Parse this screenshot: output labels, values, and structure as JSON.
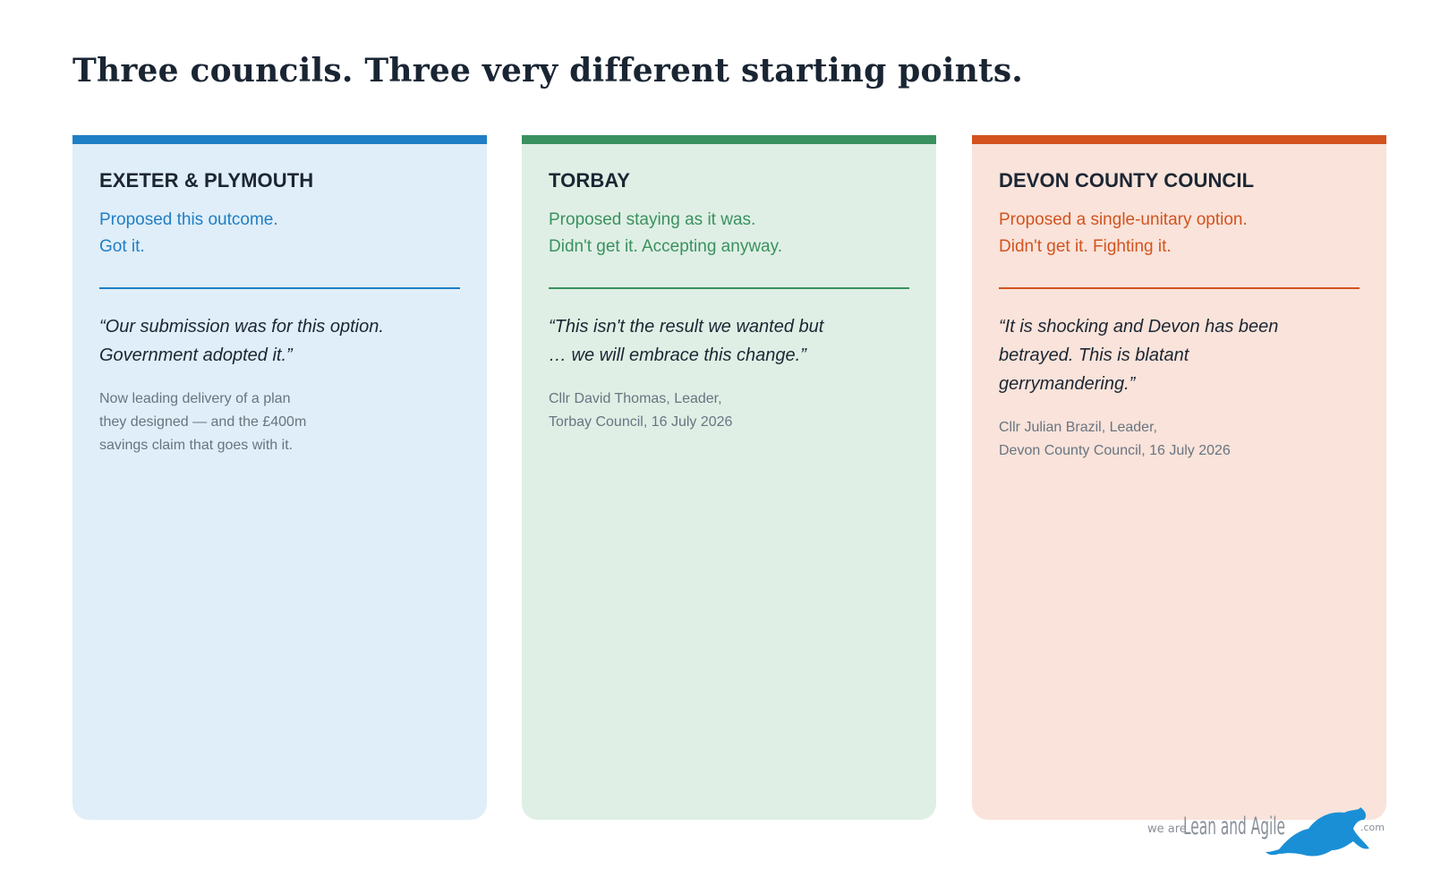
{
  "page": {
    "title": "Three councils. Three very different starting points."
  },
  "cards": [
    {
      "heading": "EXETER & PLYMOUTH",
      "summary_lines": [
        "Proposed this outcome.",
        "Got it."
      ],
      "quote": "“Our submission was for this option. Government adopted it.”",
      "note_lines": [
        "Now leading delivery of a plan",
        "they designed — and the £400m",
        "savings claim that goes with it."
      ],
      "accent": "#1f7ec4",
      "background": "#dfeef8"
    },
    {
      "heading": "TORBAY",
      "summary_lines": [
        "Proposed staying as it was.",
        "Didn't get it. Accepting anyway."
      ],
      "quote": "“This isn't the result we wanted but … we will embrace this change.”",
      "note_lines": [
        "Cllr David Thomas, Leader,",
        "Torbay Council, 16 July 2026"
      ],
      "accent": "#3a915f",
      "background": "#dfefe5"
    },
    {
      "heading": "DEVON COUNTY COUNCIL",
      "summary_lines": [
        "Proposed a single-unitary option.",
        "Didn't get it. Fighting it."
      ],
      "quote": "“It is shocking and Devon has been betrayed. This is blatant gerrymandering.”",
      "note_lines": [
        "Cllr Julian Brazil, Leader,",
        "Devon County Council, 16 July 2026"
      ],
      "accent": "#d3531e",
      "background": "#f9e3da"
    }
  ],
  "logo": {
    "prefix": "we are",
    "name": "Lean and Agile",
    "suffix": ".com",
    "icon": "greyhound-icon",
    "color": "#1a8fd6"
  }
}
